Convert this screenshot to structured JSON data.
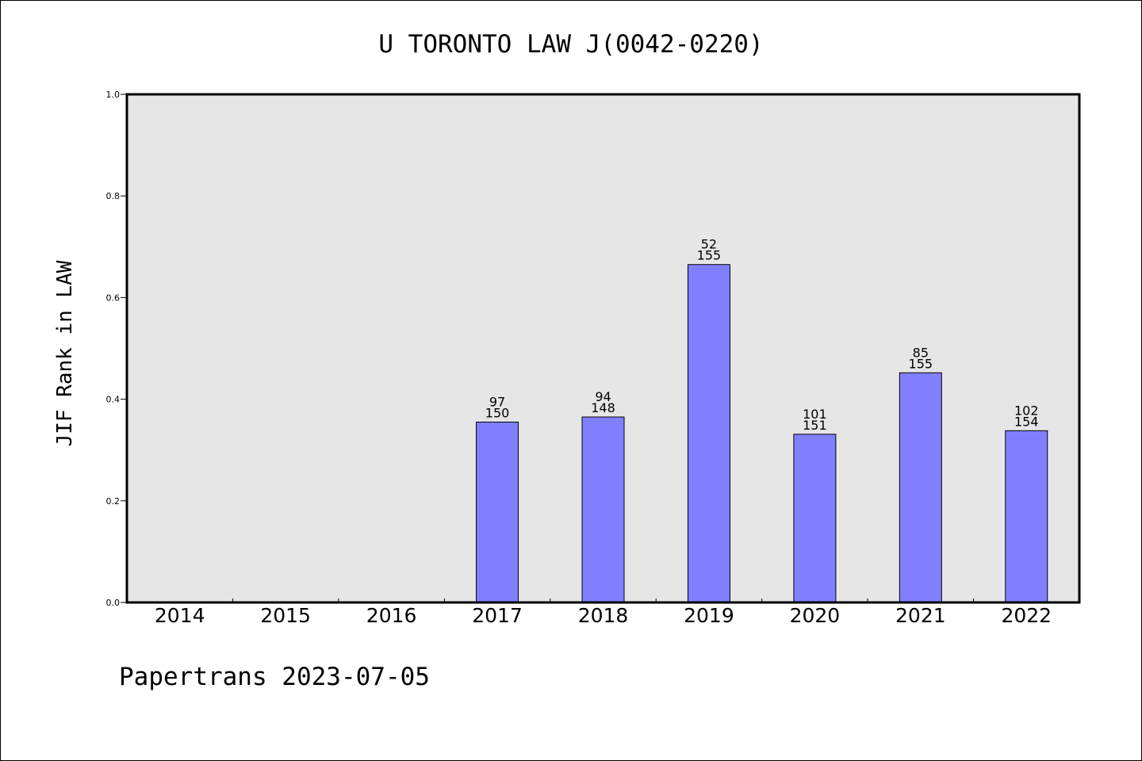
{
  "chart_data": {
    "type": "bar",
    "title": "U TORONTO LAW J(0042-0220)",
    "ylabel": "JIF Rank in LAW",
    "xlabel": "",
    "ylim": [
      0,
      1.0
    ],
    "yticks": [
      "0.0",
      "0.2",
      "0.4",
      "0.6",
      "0.8",
      "1.0"
    ],
    "categories": [
      "2014",
      "2015",
      "2016",
      "2017",
      "2018",
      "2019",
      "2020",
      "2021",
      "2022"
    ],
    "values": [
      null,
      null,
      null,
      0.355,
      0.365,
      0.665,
      0.331,
      0.452,
      0.338
    ],
    "ranks": [
      null,
      null,
      null,
      "97",
      "94",
      "52",
      "101",
      "85",
      "102"
    ],
    "totals": [
      null,
      null,
      null,
      "150",
      "148",
      "155",
      "151",
      "155",
      "154"
    ],
    "bar_color": "#8080ff",
    "plot_background": "#e6e6e6",
    "grid": false,
    "legend": "none",
    "footer": "Papertrans 2023-07-05"
  }
}
